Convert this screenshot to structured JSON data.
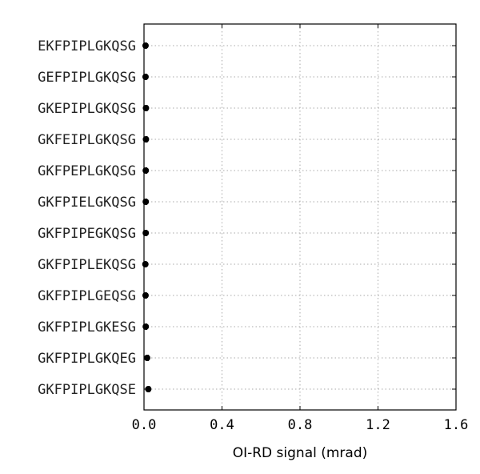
{
  "chart_data": {
    "type": "scatter",
    "orientation": "horizontal",
    "title": "",
    "xlabel": "OI-RD signal (mrad)",
    "ylabel": "",
    "xlim": [
      0.0,
      1.6
    ],
    "x_ticks": [
      "0.0",
      "0.4",
      "0.8",
      "1.2",
      "1.6"
    ],
    "grid": true,
    "marker_color": "#000000",
    "categories": [
      "EKFPIPLGKQSG",
      "GEFPIPLGKQSG",
      "GKEPIPLGKQSG",
      "GKFEIPLGKQSG",
      "GKFPEPLGKQSG",
      "GKFPIELGKQSG",
      "GKFPIPEGKQSG",
      "GKFPIPLEKQSG",
      "GKFPIPLGEQSG",
      "GKFPIPLGKESG",
      "GKFPIPLGKQEG",
      "GKFPIPLGKQSE"
    ],
    "values": [
      0.008,
      0.008,
      0.01,
      0.01,
      0.009,
      0.009,
      0.009,
      0.007,
      0.008,
      0.009,
      0.016,
      0.022
    ],
    "errors": [
      0.004,
      0.004,
      0.006,
      0.006,
      0.005,
      0.005,
      0.004,
      0.003,
      0.004,
      0.005,
      0.006,
      0.006
    ]
  }
}
